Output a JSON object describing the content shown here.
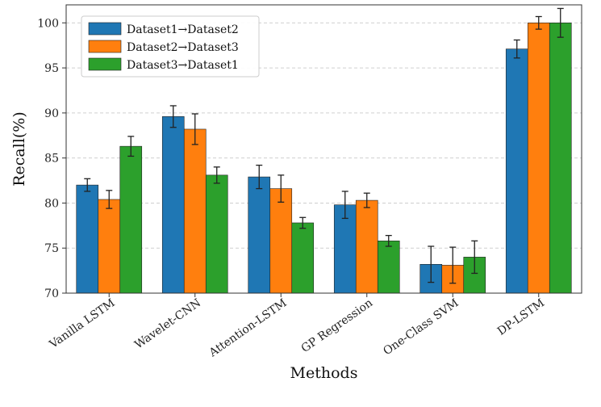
{
  "chart_data": {
    "type": "bar",
    "title": "",
    "xlabel": "Methods",
    "ylabel": "Recall(%)",
    "ylim": [
      70,
      102
    ],
    "yticks": [
      70,
      75,
      80,
      85,
      90,
      95,
      100
    ],
    "grid": "horizontal-dashed",
    "legend_position": "top-left",
    "categories": [
      "Vanilla LSTM",
      "Wavelet-CNN",
      "Attention-LSTM",
      "GP Regression",
      "One-Class SVM",
      "DP-LSTM"
    ],
    "series": [
      {
        "name": "Dataset1→Dataset2",
        "color": "#1f77b4",
        "values": [
          82.0,
          89.6,
          82.9,
          79.8,
          73.2,
          97.1
        ],
        "errors": [
          0.7,
          1.2,
          1.3,
          1.5,
          2.0,
          1.0
        ]
      },
      {
        "name": "Dataset2→Dataset3",
        "color": "#ff7f0e",
        "values": [
          80.4,
          88.2,
          81.6,
          80.3,
          73.1,
          100.0
        ],
        "errors": [
          1.0,
          1.7,
          1.5,
          0.8,
          2.0,
          0.7
        ]
      },
      {
        "name": "Dataset3→Dataset1",
        "color": "#2ca02c",
        "values": [
          86.3,
          83.1,
          77.8,
          75.8,
          74.0,
          100.0
        ],
        "errors": [
          1.1,
          0.9,
          0.6,
          0.6,
          1.8,
          1.6
        ]
      }
    ]
  }
}
